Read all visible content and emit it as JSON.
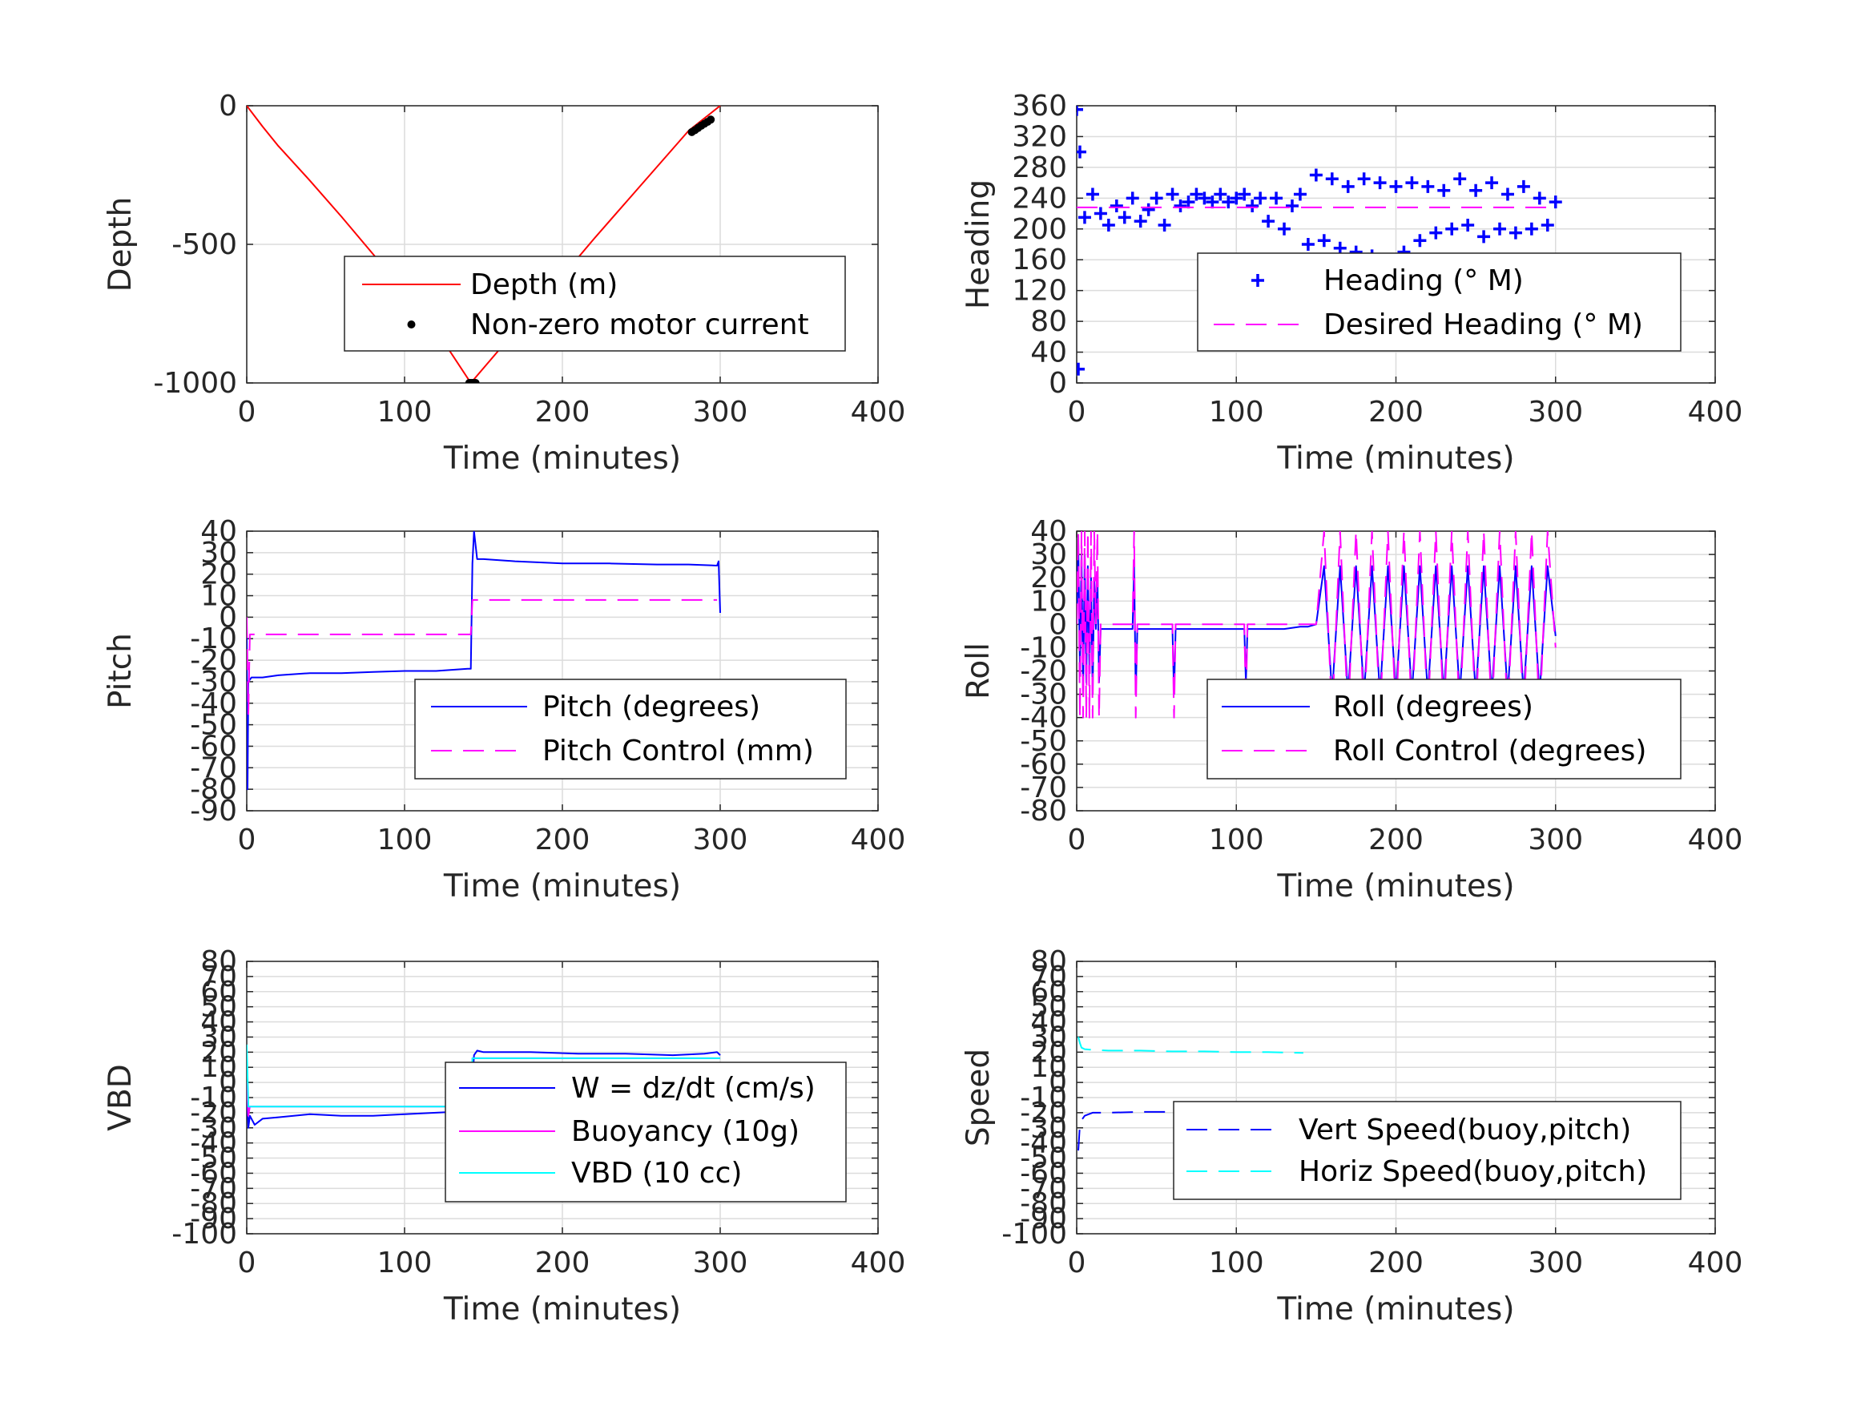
{
  "chart_data": [
    {
      "type": "line",
      "xlabel": "Time (minutes)",
      "ylabel": "Depth",
      "xlim": [
        0,
        400
      ],
      "ylim": [
        -1000,
        0
      ],
      "xticks": [
        "0",
        "100",
        "200",
        "300",
        "400"
      ],
      "yticks": [
        "0",
        "-500",
        "-1000"
      ],
      "grid": true,
      "legend_location": "center-right",
      "series": [
        {
          "name": "Depth (m)",
          "style": "line",
          "color": "#ff0000",
          "x": [
            0,
            10,
            20,
            40,
            60,
            80,
            100,
            120,
            142,
            160,
            180,
            200,
            220,
            240,
            260,
            280,
            300
          ],
          "y": [
            0,
            -75,
            -145,
            -270,
            -400,
            -535,
            -670,
            -810,
            -1000,
            -880,
            -750,
            -615,
            -480,
            -350,
            -220,
            -90,
            0
          ]
        },
        {
          "name": "Non-zero motor current",
          "style": "dots",
          "color": "#000000",
          "x": [
            141,
            142,
            143,
            144,
            145,
            282,
            284,
            286,
            288,
            290,
            292,
            294
          ],
          "y": [
            -1000,
            -1000,
            -1000,
            -1000,
            -1000,
            -95,
            -88,
            -80,
            -72,
            -65,
            -58,
            -50
          ]
        }
      ]
    },
    {
      "type": "scatter",
      "xlabel": "Time (minutes)",
      "ylabel": "Heading",
      "xlim": [
        0,
        400
      ],
      "ylim": [
        0,
        360
      ],
      "xticks": [
        "0",
        "100",
        "200",
        "300",
        "400"
      ],
      "yticks": [
        "0",
        "40",
        "80",
        "120",
        "160",
        "200",
        "240",
        "280",
        "320",
        "360"
      ],
      "grid": true,
      "legend_location": "lower-right",
      "series": [
        {
          "name": "Heading (° M)",
          "style": "plus",
          "color": "#0000ff",
          "x": [
            0,
            1,
            2,
            5,
            10,
            15,
            20,
            25,
            30,
            35,
            40,
            45,
            50,
            55,
            60,
            65,
            70,
            75,
            80,
            85,
            90,
            95,
            100,
            105,
            110,
            115,
            120,
            125,
            130,
            135,
            140,
            145,
            150,
            155,
            160,
            165,
            170,
            175,
            180,
            185,
            190,
            195,
            200,
            205,
            210,
            215,
            220,
            225,
            230,
            235,
            240,
            245,
            250,
            255,
            260,
            265,
            270,
            275,
            280,
            285,
            290,
            295,
            300
          ],
          "y": [
            355,
            18,
            300,
            215,
            245,
            220,
            205,
            230,
            215,
            240,
            210,
            225,
            240,
            205,
            245,
            230,
            235,
            245,
            240,
            235,
            245,
            235,
            240,
            245,
            230,
            240,
            210,
            240,
            200,
            230,
            245,
            180,
            270,
            185,
            265,
            175,
            255,
            170,
            265,
            165,
            260,
            160,
            255,
            170,
            260,
            185,
            255,
            195,
            250,
            200,
            265,
            205,
            250,
            190,
            260,
            200,
            245,
            195,
            255,
            200,
            240,
            205,
            235
          ]
        },
        {
          "name": "Desired Heading (° M)",
          "style": "dash",
          "color": "#ff00ff",
          "x": [
            0,
            300
          ],
          "y": [
            228,
            228
          ]
        }
      ]
    },
    {
      "type": "line",
      "xlabel": "Time (minutes)",
      "ylabel": "Pitch",
      "xlim": [
        0,
        400
      ],
      "ylim": [
        -90,
        40
      ],
      "xticks": [
        "0",
        "100",
        "200",
        "300",
        "400"
      ],
      "yticks": [
        "40",
        "30",
        "20",
        "10",
        "0",
        "-10",
        "-20",
        "-30",
        "-40",
        "-50",
        "-60",
        "-70",
        "-80",
        "-90"
      ],
      "grid": true,
      "legend_location": "lower-right",
      "series": [
        {
          "name": "Pitch (degrees)",
          "style": "line",
          "color": "#0000ff",
          "x": [
            0,
            0.5,
            1,
            3,
            10,
            20,
            40,
            60,
            80,
            100,
            120,
            140,
            142,
            143,
            144,
            146,
            150,
            170,
            200,
            230,
            260,
            280,
            298,
            299,
            300
          ],
          "y": [
            -5,
            -80,
            -30,
            -28,
            -28,
            -27,
            -26,
            -26,
            -25.5,
            -25,
            -25,
            -24,
            -24,
            25,
            40,
            27,
            27,
            26,
            25,
            25,
            24.5,
            24.5,
            24,
            26,
            2
          ]
        },
        {
          "name": "Pitch Control (mm)",
          "style": "dash",
          "color": "#ff00ff",
          "x": [
            0,
            1,
            2,
            130,
            140,
            142,
            143,
            150,
            200,
            250,
            298
          ],
          "y": [
            0,
            -45,
            -8,
            -8,
            -8,
            -8,
            8,
            8,
            8,
            8,
            8
          ]
        }
      ]
    },
    {
      "type": "line",
      "xlabel": "Time (minutes)",
      "ylabel": "Roll",
      "xlim": [
        0,
        400
      ],
      "ylim": [
        -80,
        40
      ],
      "xticks": [
        "0",
        "100",
        "200",
        "300",
        "400"
      ],
      "yticks": [
        "40",
        "30",
        "20",
        "10",
        "0",
        "-10",
        "-20",
        "-30",
        "-40",
        "-50",
        "-60",
        "-70",
        "-80"
      ],
      "grid": true,
      "legend_location": "lower-right",
      "series": [
        {
          "name": "Roll (degrees)",
          "style": "line",
          "color": "#0000ff",
          "x": [
            0,
            1,
            2,
            3,
            4,
            5,
            6,
            7,
            8,
            9,
            10,
            11,
            12,
            13,
            14,
            15,
            20,
            35,
            36,
            37,
            38,
            40,
            60,
            61,
            62,
            100,
            105,
            106,
            107,
            130,
            140,
            145,
            150,
            155,
            160,
            165,
            170,
            175,
            180,
            185,
            190,
            195,
            200,
            205,
            210,
            215,
            220,
            225,
            230,
            235,
            240,
            245,
            250,
            255,
            260,
            265,
            270,
            275,
            280,
            285,
            290,
            295,
            300
          ],
          "y": [
            0,
            35,
            -20,
            30,
            -30,
            30,
            -25,
            25,
            -20,
            20,
            -30,
            20,
            -2,
            20,
            -25,
            -2,
            -2,
            -2,
            25,
            -30,
            -2,
            -2,
            -2,
            -30,
            -2,
            -2,
            -2,
            -25,
            -2,
            -2,
            -1,
            -1,
            0,
            25,
            -30,
            25,
            -30,
            25,
            -30,
            25,
            -30,
            25,
            -30,
            25,
            -30,
            25,
            -30,
            25,
            -30,
            25,
            -30,
            25,
            -30,
            25,
            -30,
            25,
            -30,
            25,
            -30,
            25,
            -30,
            25,
            -5
          ]
        },
        {
          "name": "Roll Control (degrees)",
          "style": "dash",
          "color": "#ff00ff",
          "x": [
            0,
            1,
            2,
            3,
            4,
            5,
            6,
            7,
            8,
            9,
            10,
            11,
            12,
            13,
            14,
            15,
            20,
            35,
            36,
            37,
            38,
            40,
            60,
            61,
            62,
            100,
            105,
            106,
            107,
            130,
            140,
            145,
            150,
            155,
            160,
            165,
            170,
            175,
            180,
            185,
            190,
            195,
            200,
            205,
            210,
            215,
            220,
            225,
            230,
            235,
            240,
            245,
            250,
            255,
            260,
            265,
            270,
            275,
            280,
            285,
            290,
            295,
            300
          ],
          "y": [
            0,
            40,
            -40,
            40,
            -40,
            40,
            -40,
            40,
            -40,
            40,
            -40,
            40,
            0,
            40,
            -40,
            0,
            0,
            0,
            40,
            -40,
            0,
            0,
            0,
            -40,
            0,
            0,
            0,
            -35,
            0,
            0,
            0,
            0,
            0,
            40,
            -40,
            40,
            -40,
            40,
            -40,
            40,
            -40,
            40,
            -40,
            40,
            -40,
            40,
            -40,
            40,
            -40,
            40,
            -40,
            40,
            -40,
            40,
            -40,
            40,
            -40,
            40,
            -40,
            40,
            -40,
            40,
            -10
          ]
        }
      ]
    },
    {
      "type": "line",
      "xlabel": "Time (minutes)",
      "ylabel": "VBD",
      "xlim": [
        0,
        400
      ],
      "ylim": [
        -100,
        80
      ],
      "xticks": [
        "0",
        "100",
        "200",
        "300",
        "400"
      ],
      "yticks": [
        "80",
        "70",
        "60",
        "50",
        "40",
        "30",
        "20",
        "10",
        "0",
        "-10",
        "-20",
        "-30",
        "-40",
        "-50",
        "-60",
        "-70",
        "-80",
        "-90",
        "-100"
      ],
      "grid": true,
      "legend_location": "right",
      "series": [
        {
          "name": "W = dz/dt (cm/s)",
          "style": "line",
          "color": "#0000ff",
          "x": [
            0,
            1,
            2,
            5,
            10,
            20,
            40,
            60,
            80,
            100,
            120,
            140,
            142,
            144,
            146,
            150,
            180,
            210,
            240,
            270,
            290,
            298,
            300
          ],
          "y": [
            -5,
            -30,
            -22,
            -28,
            -24,
            -23,
            -21,
            -22,
            -22,
            -21,
            -20,
            -19,
            -19,
            18,
            21,
            20,
            20,
            19,
            19,
            18,
            19,
            20,
            18
          ]
        },
        {
          "name": "Buoyancy (10g)",
          "style": "line",
          "color": "#ff00ff",
          "x": [
            0,
            1,
            2,
            10,
            140,
            142,
            143,
            300
          ],
          "y": [
            0,
            -22,
            -16,
            -16,
            -16,
            -16,
            16,
            16
          ]
        },
        {
          "name": "VBD (10 cc)",
          "style": "line",
          "color": "#00ffff",
          "x": [
            0,
            1,
            2,
            10,
            140,
            142,
            143,
            300
          ],
          "y": [
            25,
            -16,
            -16,
            -16,
            -16,
            -16,
            16,
            16
          ]
        }
      ]
    },
    {
      "type": "line",
      "xlabel": "Time (minutes)",
      "ylabel": "Speed",
      "xlim": [
        0,
        400
      ],
      "ylim": [
        -100,
        80
      ],
      "xticks": [
        "0",
        "100",
        "200",
        "300",
        "400"
      ],
      "yticks": [
        "80",
        "70",
        "60",
        "50",
        "40",
        "30",
        "20",
        "10",
        "0",
        "-10",
        "-20",
        "-30",
        "-40",
        "-50",
        "-60",
        "-70",
        "-80",
        "-90",
        "-100"
      ],
      "grid": true,
      "legend_location": "lower-right",
      "series": [
        {
          "name": "Vert Speed(buoy,pitch)",
          "style": "dash",
          "color": "#0000ff",
          "x": [
            1,
            2,
            3,
            5,
            10,
            20,
            40,
            60,
            80,
            100,
            120,
            142
          ],
          "y": [
            -45,
            -28,
            -25,
            -22,
            -20,
            -20,
            -19.5,
            -19.5,
            -19,
            -19,
            -18.5,
            -18
          ]
        },
        {
          "name": "Horiz Speed(buoy,pitch)",
          "style": "dash",
          "color": "#00ffff",
          "x": [
            1,
            2,
            3,
            5,
            10,
            20,
            40,
            60,
            80,
            100,
            120,
            142
          ],
          "y": [
            30,
            26,
            23,
            22,
            21.5,
            21,
            21,
            20.5,
            20.5,
            20,
            20,
            19.5
          ]
        }
      ]
    }
  ]
}
